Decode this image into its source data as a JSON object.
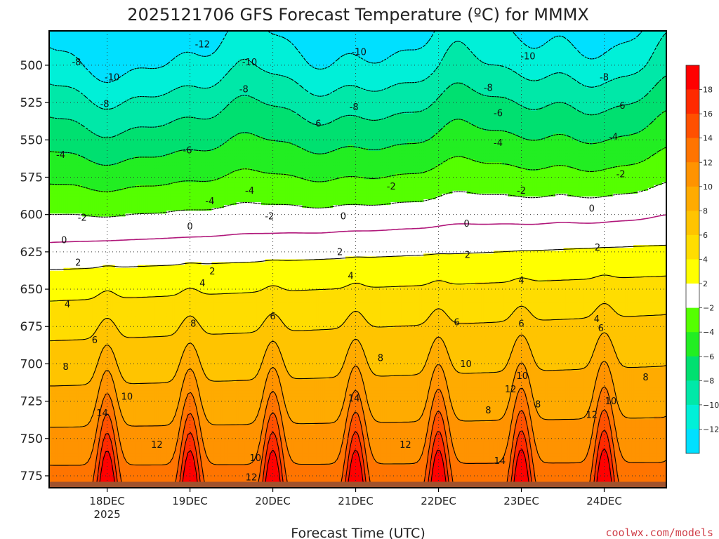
{
  "chart_data": {
    "type": "contour",
    "title": "2025121706 GFS Forecast Temperature (ºC) for MMMX",
    "xlabel": "Forecast Time (UTC)",
    "ylabel": "",
    "credit": "coolwx.com/models",
    "x_ticks": [
      "18DEC",
      "19DEC",
      "20DEC",
      "21DEC",
      "22DEC",
      "23DEC",
      "24DEC"
    ],
    "x_year": "2025",
    "x_range_days": [
      17.3,
      24.75
    ],
    "y_axis": {
      "label_unit": "hPa",
      "reversed": true,
      "range": [
        477,
        783
      ],
      "ticks": [
        500,
        525,
        550,
        575,
        600,
        625,
        650,
        675,
        700,
        725,
        750,
        775
      ]
    },
    "grid": "dotted",
    "ground_level_hPa": 779,
    "ground_color": "#a0522d",
    "colorbar": {
      "position": "right",
      "tick_labels": [
        "18",
        "16",
        "14",
        "12",
        "10",
        "8",
        "6",
        "4",
        "2",
        "−2",
        "−4",
        "−6",
        "−8",
        "−10",
        "−12"
      ],
      "bins": [
        {
          "from": 18,
          "to": 20,
          "color": "#ff0000"
        },
        {
          "from": 16,
          "to": 18,
          "color": "#ff2a00"
        },
        {
          "from": 14,
          "to": 16,
          "color": "#ff5000"
        },
        {
          "from": 12,
          "to": 14,
          "color": "#ff7400"
        },
        {
          "from": 10,
          "to": 12,
          "color": "#ff9300"
        },
        {
          "from": 8,
          "to": 10,
          "color": "#ffab00"
        },
        {
          "from": 6,
          "to": 8,
          "color": "#ffc400"
        },
        {
          "from": 4,
          "to": 6,
          "color": "#ffdd00"
        },
        {
          "from": 2,
          "to": 4,
          "color": "#ffff00"
        },
        {
          "from": -2,
          "to": 2,
          "color": "#ffffff"
        },
        {
          "from": -4,
          "to": -2,
          "color": "#55ff00"
        },
        {
          "from": -6,
          "to": -4,
          "color": "#22ee22"
        },
        {
          "from": -8,
          "to": -6,
          "color": "#00e070"
        },
        {
          "from": -10,
          "to": -8,
          "color": "#00e8a8"
        },
        {
          "from": -12,
          "to": -10,
          "color": "#00f0d8"
        },
        {
          "from": -14,
          "to": -12,
          "color": "#00e0ff"
        }
      ]
    },
    "contour_levels": [
      18,
      16,
      14,
      12,
      10,
      8,
      6,
      4,
      2,
      0,
      -2,
      -4,
      -6,
      -8,
      -10,
      -12
    ],
    "contour_styles": {
      "positive": "solid-black",
      "zero": "solid-purple",
      "negative": "dashed-black"
    },
    "zero_color": "#b0177a",
    "diurnal_peak_hours_UTC": 0,
    "profile": {
      "description_values": "temperature by pressure level (hPa) at reference time",
      "levels": [
        {
          "p": 480,
          "t": -12.5
        },
        {
          "p": 500,
          "t": -11
        },
        {
          "p": 525,
          "t": -8.5
        },
        {
          "p": 550,
          "t": -6.2
        },
        {
          "p": 575,
          "t": -3.8
        },
        {
          "p": 600,
          "t": -1.2
        },
        {
          "p": 625,
          "t": 1.6
        },
        {
          "p": 650,
          "t": 4.2
        },
        {
          "p": 675,
          "t": 6.3
        },
        {
          "p": 700,
          "t": 8.2
        },
        {
          "p": 725,
          "t": 10.2
        },
        {
          "p": 750,
          "t": 12.6
        },
        {
          "p": 775,
          "t": 15.2
        }
      ]
    },
    "contour_labels": [
      {
        "v": "-12",
        "day": 19.15,
        "p": 486
      },
      {
        "v": "-10",
        "day": 21.04,
        "p": 491
      },
      {
        "v": "-10",
        "day": 23.08,
        "p": 494
      },
      {
        "v": "-8",
        "day": 17.63,
        "p": 498
      },
      {
        "v": "-10",
        "day": 19.72,
        "p": 498
      },
      {
        "v": "-10",
        "day": 18.06,
        "p": 508
      },
      {
        "v": "-8",
        "day": 22.6,
        "p": 515
      },
      {
        "v": "-8",
        "day": 24.0,
        "p": 508
      },
      {
        "v": "-8",
        "day": 19.65,
        "p": 516
      },
      {
        "v": "-8",
        "day": 17.97,
        "p": 526
      },
      {
        "v": "-8",
        "day": 20.98,
        "p": 528
      },
      {
        "v": "-6",
        "day": 22.72,
        "p": 532
      },
      {
        "v": "-6",
        "day": 24.2,
        "p": 527
      },
      {
        "v": "-6",
        "day": 20.53,
        "p": 539
      },
      {
        "v": "-4",
        "day": 17.44,
        "p": 560
      },
      {
        "v": "-6",
        "day": 18.97,
        "p": 557
      },
      {
        "v": "-4",
        "day": 22.72,
        "p": 552
      },
      {
        "v": "-4",
        "day": 24.11,
        "p": 548
      },
      {
        "v": "-2",
        "day": 24.2,
        "p": 573
      },
      {
        "v": "-2",
        "day": 21.43,
        "p": 581
      },
      {
        "v": "-2",
        "day": 23.0,
        "p": 584
      },
      {
        "v": "-4",
        "day": 19.72,
        "p": 584
      },
      {
        "v": "-4",
        "day": 19.24,
        "p": 591
      },
      {
        "v": "0",
        "day": 23.85,
        "p": 596
      },
      {
        "v": "-2",
        "day": 17.7,
        "p": 602
      },
      {
        "v": "-2",
        "day": 19.96,
        "p": 601
      },
      {
        "v": "0",
        "day": 20.85,
        "p": 601
      },
      {
        "v": "0",
        "day": 19.0,
        "p": 608
      },
      {
        "v": "0",
        "day": 22.34,
        "p": 606
      },
      {
        "v": "0",
        "day": 17.48,
        "p": 617
      },
      {
        "v": "2",
        "day": 23.92,
        "p": 622
      },
      {
        "v": "2",
        "day": 20.81,
        "p": 625
      },
      {
        "v": "2",
        "day": 22.35,
        "p": 627
      },
      {
        "v": "2",
        "day": 17.65,
        "p": 632
      },
      {
        "v": "2",
        "day": 19.27,
        "p": 638
      },
      {
        "v": "4",
        "day": 20.94,
        "p": 641
      },
      {
        "v": "4",
        "day": 23.0,
        "p": 644
      },
      {
        "v": "4",
        "day": 19.15,
        "p": 646
      },
      {
        "v": "4",
        "day": 17.52,
        "p": 660
      },
      {
        "v": "6",
        "day": 20.0,
        "p": 668
      },
      {
        "v": "4",
        "day": 23.91,
        "p": 670
      },
      {
        "v": "6",
        "day": 22.22,
        "p": 672
      },
      {
        "v": "6",
        "day": 23.0,
        "p": 673
      },
      {
        "v": "6",
        "day": 23.96,
        "p": 676
      },
      {
        "v": "8",
        "day": 19.04,
        "p": 673
      },
      {
        "v": "6",
        "day": 17.85,
        "p": 684
      },
      {
        "v": "8",
        "day": 21.3,
        "p": 696
      },
      {
        "v": "10",
        "day": 22.33,
        "p": 700
      },
      {
        "v": "8",
        "day": 17.5,
        "p": 702
      },
      {
        "v": "10",
        "day": 23.01,
        "p": 708
      },
      {
        "v": "12",
        "day": 22.87,
        "p": 717
      },
      {
        "v": "8",
        "day": 24.5,
        "p": 709
      },
      {
        "v": "14",
        "day": 20.98,
        "p": 723
      },
      {
        "v": "10",
        "day": 18.24,
        "p": 722
      },
      {
        "v": "10",
        "day": 24.08,
        "p": 725
      },
      {
        "v": "8",
        "day": 23.2,
        "p": 727
      },
      {
        "v": "8",
        "day": 22.6,
        "p": 731
      },
      {
        "v": "14",
        "day": 17.94,
        "p": 733
      },
      {
        "v": "12",
        "day": 23.85,
        "p": 734
      },
      {
        "v": "12",
        "day": 18.6,
        "p": 754
      },
      {
        "v": "12",
        "day": 21.6,
        "p": 754
      },
      {
        "v": "10",
        "day": 19.79,
        "p": 763
      },
      {
        "v": "14",
        "day": 22.74,
        "p": 765
      },
      {
        "v": "12",
        "day": 19.74,
        "p": 776
      }
    ]
  }
}
